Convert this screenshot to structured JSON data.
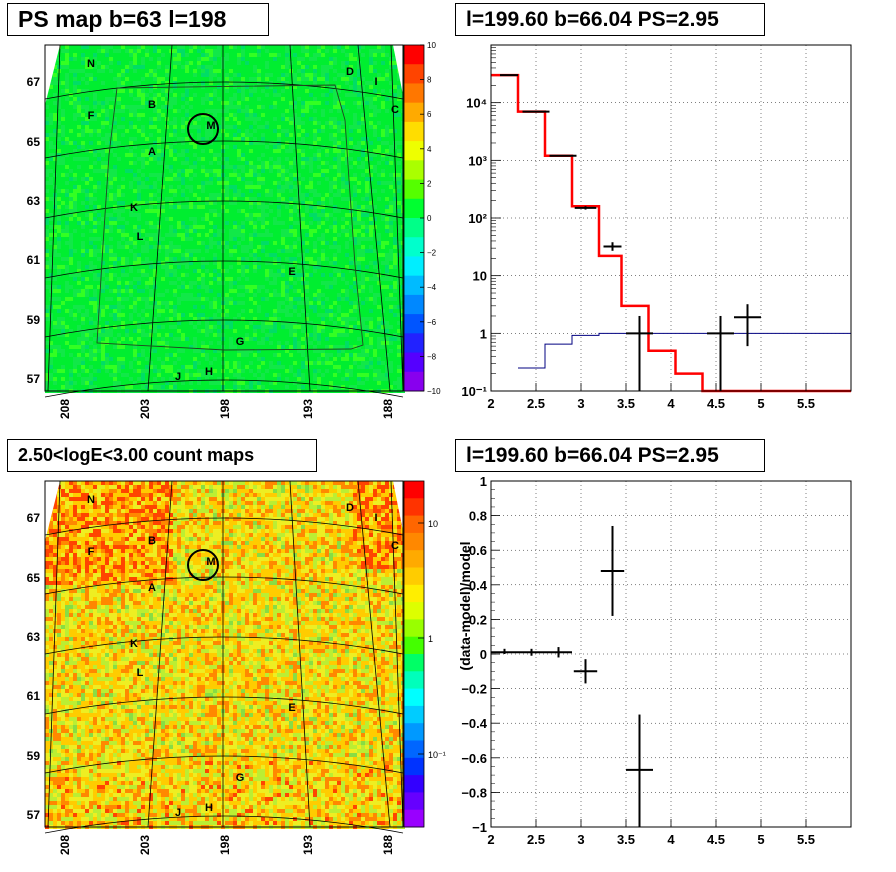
{
  "panels": {
    "ps_map": {
      "title": "PS map b=63 l=198",
      "y_ticks": [
        "67",
        "65",
        "63",
        "61",
        "59",
        "57"
      ],
      "x_ticks": [
        "208",
        "203",
        "198",
        "193",
        "188"
      ],
      "colorbar_ticks": [
        "10",
        "8",
        "6",
        "4",
        "2",
        "0",
        "−2",
        "−4",
        "−6",
        "−8",
        "−10"
      ],
      "source_labels": [
        "N",
        "D",
        "I",
        "B",
        "C",
        "F",
        "M",
        "A",
        "K",
        "L",
        "E",
        "G",
        "H",
        "J"
      ]
    },
    "count_map": {
      "title": "2.50<logE<3.00 count maps",
      "y_ticks": [
        "67",
        "65",
        "63",
        "61",
        "59",
        "57"
      ],
      "x_ticks": [
        "208",
        "203",
        "198",
        "193",
        "188"
      ],
      "colorbar_ticks": [
        "10",
        "1",
        "10⁻¹"
      ],
      "source_labels": [
        "N",
        "D",
        "I",
        "B",
        "C",
        "F",
        "M",
        "A",
        "K",
        "L",
        "E",
        "G",
        "H",
        "J"
      ]
    }
  },
  "chart_data": [
    {
      "type": "line",
      "title": "l=199.60 b=66.04 PS=2.95",
      "xlim": [
        2,
        6
      ],
      "ylim": [
        0.1,
        100000
      ],
      "yscale": "log",
      "x_ticks": [
        "2",
        "2.5",
        "3",
        "3.5",
        "4",
        "4.5",
        "5",
        "5.5"
      ],
      "y_ticks": [
        "10⁻¹",
        "1",
        "10",
        "10²",
        "10³",
        "10⁴"
      ],
      "grid": true,
      "series": [
        {
          "style": "histogram-red",
          "color": "#ff0000",
          "bins": [
            [
              2.0,
              2.3,
              30000
            ],
            [
              2.3,
              2.6,
              7000
            ],
            [
              2.6,
              2.9,
              1200
            ],
            [
              2.9,
              3.2,
              160
            ],
            [
              3.2,
              3.45,
              22
            ],
            [
              3.45,
              3.75,
              3
            ],
            [
              3.75,
              4.05,
              0.5
            ],
            [
              4.05,
              4.35,
              0.2
            ],
            [
              4.35,
              4.65,
              0.1
            ],
            [
              4.65,
              6.0,
              0.1
            ]
          ]
        },
        {
          "style": "histogram-blue",
          "color": "#000080",
          "bins": [
            [
              2.3,
              2.6,
              0.25
            ],
            [
              2.6,
              2.9,
              0.65
            ],
            [
              2.9,
              3.2,
              0.92
            ],
            [
              3.2,
              6.0,
              1.0
            ]
          ]
        },
        {
          "style": "errorbars",
          "color": "#000000",
          "points": [
            {
              "x": 2.2,
              "y": 30000,
              "xerr": 0.1,
              "ylo": 29600,
              "yhi": 30400
            },
            {
              "x": 2.5,
              "y": 7000,
              "xerr": 0.15,
              "ylo": 6900,
              "yhi": 7100
            },
            {
              "x": 2.8,
              "y": 1200,
              "xerr": 0.15,
              "ylo": 1170,
              "yhi": 1230
            },
            {
              "x": 3.05,
              "y": 150,
              "xerr": 0.12,
              "ylo": 140,
              "yhi": 160
            },
            {
              "x": 3.35,
              "y": 32,
              "xerr": 0.1,
              "ylo": 27,
              "yhi": 38
            },
            {
              "x": 3.65,
              "y": 1.0,
              "xerr": 0.15,
              "ylo": 0.1,
              "yhi": 2.0
            },
            {
              "x": 4.55,
              "y": 1.0,
              "xerr": 0.15,
              "ylo": 0.1,
              "yhi": 2.0
            },
            {
              "x": 4.85,
              "y": 1.9,
              "xerr": 0.15,
              "ylo": 0.6,
              "yhi": 3.2
            }
          ]
        }
      ]
    },
    {
      "type": "scatter",
      "title": "l=199.60 b=66.04 PS=2.95",
      "ylabel": "(data-model)/model",
      "xlim": [
        2,
        6
      ],
      "ylim": [
        -1,
        1
      ],
      "x_ticks": [
        "2",
        "2.5",
        "3",
        "3.5",
        "4",
        "4.5",
        "5",
        "5.5"
      ],
      "y_ticks": [
        "1",
        "0.8",
        "0.6",
        "0.4",
        "0.2",
        "0",
        "−0.2",
        "−0.4",
        "−0.6",
        "−0.8",
        "−1"
      ],
      "grid": true,
      "points": [
        {
          "x": 2.15,
          "y": 0.01,
          "xerr": 0.15,
          "ylo": 0.0,
          "yhi": 0.03
        },
        {
          "x": 2.45,
          "y": 0.01,
          "xerr": 0.15,
          "ylo": -0.01,
          "yhi": 0.03
        },
        {
          "x": 2.75,
          "y": 0.01,
          "xerr": 0.15,
          "ylo": -0.02,
          "yhi": 0.04
        },
        {
          "x": 3.05,
          "y": -0.1,
          "xerr": 0.13,
          "ylo": -0.17,
          "yhi": -0.03
        },
        {
          "x": 3.35,
          "y": 0.48,
          "xerr": 0.13,
          "ylo": 0.22,
          "yhi": 0.74
        },
        {
          "x": 3.65,
          "y": -0.67,
          "xerr": 0.15,
          "ylo": -1.0,
          "yhi": -0.35
        }
      ]
    }
  ]
}
